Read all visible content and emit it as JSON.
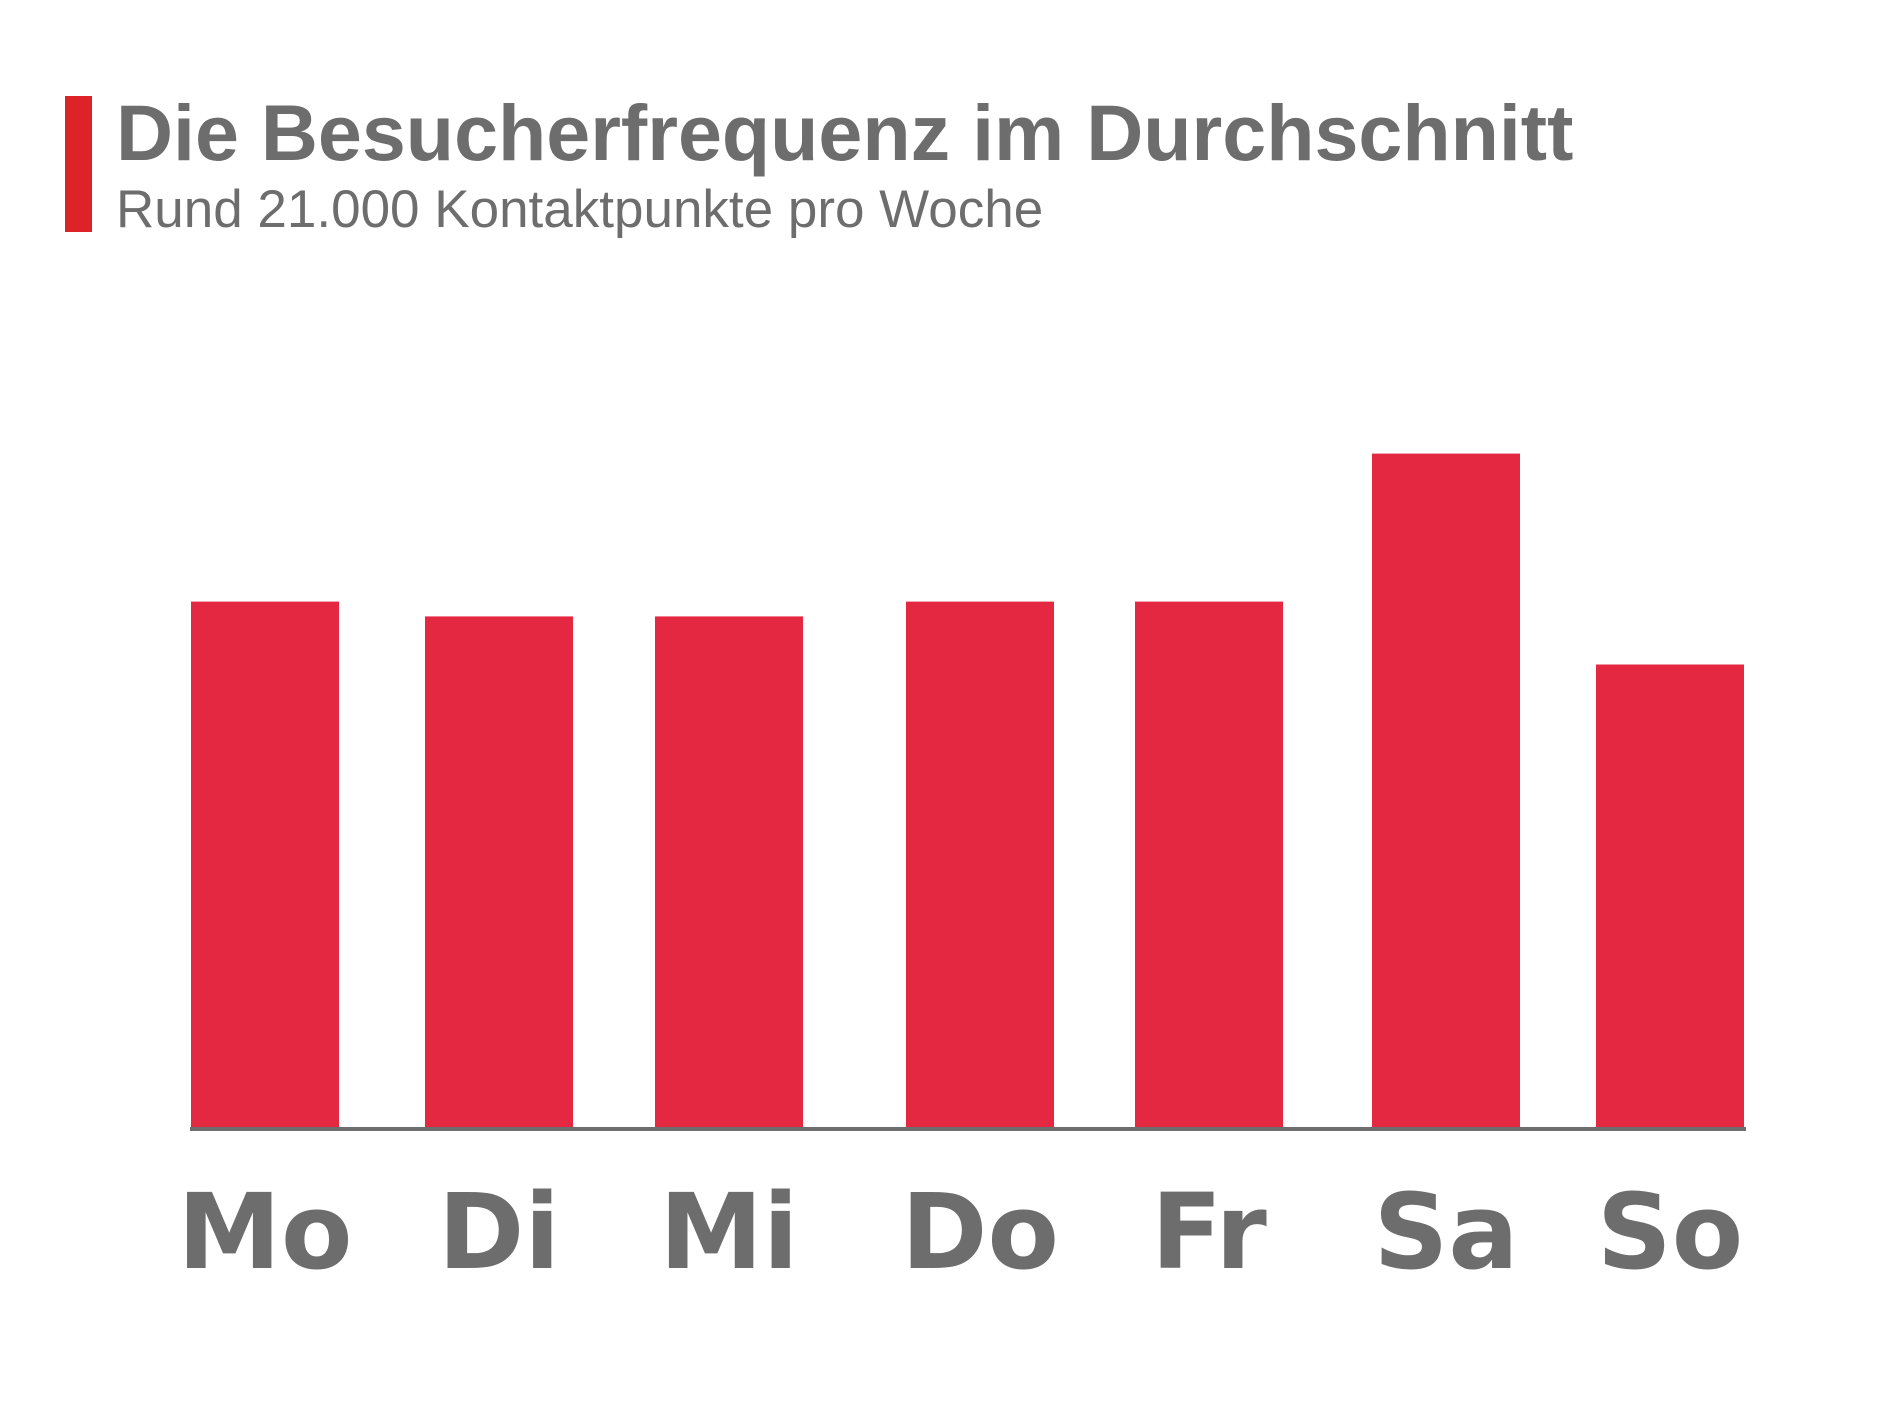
{
  "header": {
    "title": "Die Besucherfrequenz im Durchschnitt",
    "subtitle": "Rund 21.000 Kontaktpunkte pro Woche"
  },
  "colors": {
    "bar": "#e52842",
    "accent": "#dc2328",
    "text": "#6d6d6d",
    "axis": "#6d6d6d"
  },
  "chart_data": {
    "type": "bar",
    "categories": [
      "Mo",
      "Di",
      "Mi",
      "Do",
      "Fr",
      "Sa",
      "So"
    ],
    "values": [
      2.84,
      2.76,
      2.76,
      2.84,
      2.84,
      3.64,
      2.5
    ],
    "ylim": [
      0,
      4
    ],
    "grid": false,
    "legend": "none"
  }
}
